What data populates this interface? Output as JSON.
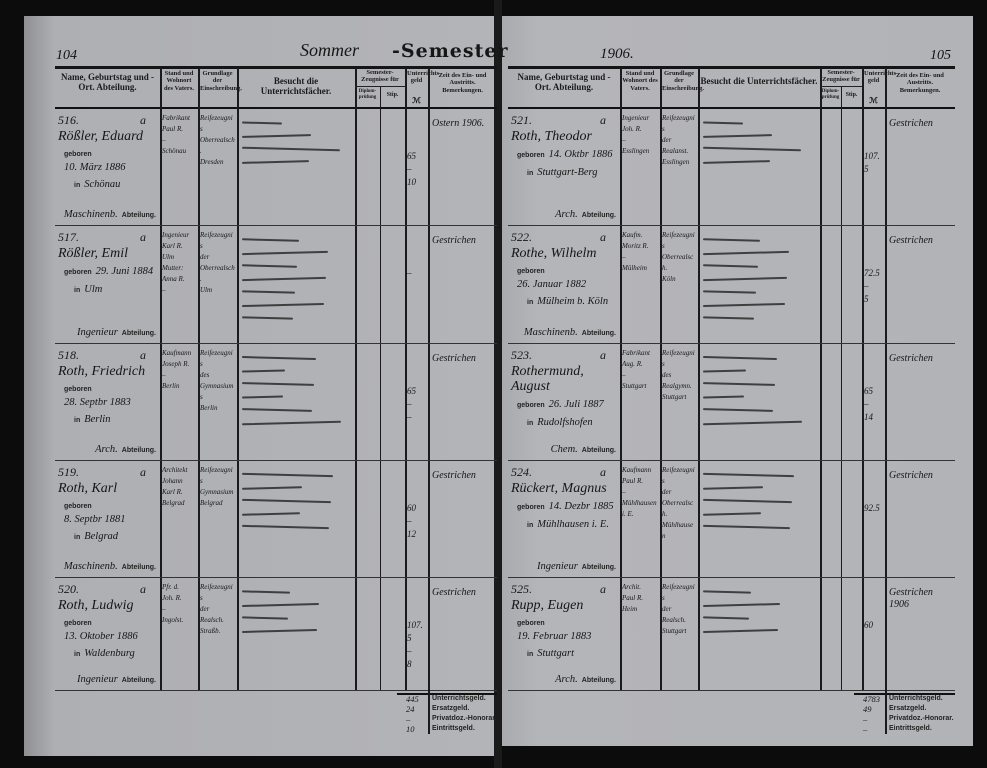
{
  "header": {
    "semester_handwritten": "Sommer",
    "semester_printed": "-Semester",
    "year": "1906.",
    "page_left": "104",
    "page_right": "105"
  },
  "columns": {
    "name": "Name, Geburtstag und -Ort. Abteilung.",
    "stand": "Stand und Wohnort des Vaters.",
    "grundlage": "Grundlage der Einschreibung.",
    "besucht": "Besucht die Unterrichtsfächer.",
    "semester": "Semester-Zeugnisse für",
    "semester_sub1": "Diplom-prüfung",
    "semester_sub2": "Stip.",
    "geld": "Unterrichts-geld",
    "geld_unit": "ℳ",
    "zeit": "Zeit des Ein- und Austritts. Bemerkungen."
  },
  "labels": {
    "geboren": "geboren",
    "in": "in",
    "abteilung": "Abteilung.",
    "a": "a"
  },
  "left_entries": [
    {
      "number": "516.",
      "name": "Rößler, Eduard",
      "born": "10. März 1886",
      "place": "Schönau",
      "abteilung": "Maschinenb.",
      "stand": [
        "Fabrikant",
        "Paul R.",
        "–",
        "Schönau"
      ],
      "grundlage": [
        "Reifezeugnis",
        "Oberrealsch.",
        "Dresden"
      ],
      "geld": [
        "65",
        "–",
        "10"
      ],
      "remark": "Ostern 1906."
    },
    {
      "number": "517.",
      "name": "Rößler, Emil",
      "born": "29. Juni 1884",
      "place": "Ulm",
      "abteilung": "Ingenieur",
      "stand": [
        "Ingenieur",
        "Karl R.",
        "Ulm",
        "Mutter:",
        "Anna R.",
        "–"
      ],
      "grundlage": [
        "Reifezeugnis",
        "der",
        "Oberrealsch.",
        "Ulm"
      ],
      "geld": [
        "–"
      ],
      "remark": "Gestrichen"
    },
    {
      "number": "518.",
      "name": "Roth, Friedrich",
      "born": "28. Septbr 1883",
      "place": "Berlin",
      "abteilung": "Arch.",
      "stand": [
        "Kaufmann",
        "Joseph R.",
        "–",
        "Berlin"
      ],
      "grundlage": [
        "Reifezeugnis",
        "des",
        "Gymnasiums",
        "Berlin"
      ],
      "geld": [
        "65",
        "–",
        "–"
      ],
      "remark": "Gestrichen"
    },
    {
      "number": "519.",
      "name": "Roth, Karl",
      "born": "8. Septbr 1881",
      "place": "Belgrad",
      "abteilung": "Maschinenb.",
      "stand": [
        "Architekt",
        "Johann",
        "Karl R.",
        "Belgrad"
      ],
      "grundlage": [
        "Reifezeugnis",
        "Gymnasium",
        "Belgrad"
      ],
      "geld": [
        "60",
        "–",
        "12"
      ],
      "remark": "Gestrichen"
    },
    {
      "number": "520.",
      "name": "Roth, Ludwig",
      "born": "13. Oktober 1886",
      "place": "Waldenburg",
      "abteilung": "Ingenieur",
      "stand": [
        "Pfr. d.",
        "Joh. R.",
        "–",
        "Ingolst."
      ],
      "grundlage": [
        "Reifezeugnis",
        "der",
        "Realsch.",
        "Straßb."
      ],
      "geld": [
        "107.5",
        "–",
        "8"
      ],
      "remark": "Gestrichen"
    }
  ],
  "right_entries": [
    {
      "number": "521.",
      "name": "Roth, Theodor",
      "born": "14. Oktbr 1886",
      "place": "Stuttgart-Berg",
      "abteilung": "Arch.",
      "stand": [
        "Ingenieur",
        "Joh. R.",
        "–",
        "Esslingen"
      ],
      "grundlage": [
        "Reifezeugnis",
        "der",
        "Realanst.",
        "Esslingen"
      ],
      "geld": [
        "107.5"
      ],
      "remark": "Gestrichen"
    },
    {
      "number": "522.",
      "name": "Rothe, Wilhelm",
      "born": "26. Januar 1882",
      "place": "Mülheim b. Köln",
      "abteilung": "Maschinenb.",
      "stand": [
        "Kaufm.",
        "Moritz R.",
        "–",
        "Mülheim"
      ],
      "grundlage": [
        "Reifezeugnis",
        "Oberrealsch.",
        "Köln"
      ],
      "geld": [
        "72.5",
        "–",
        "5"
      ],
      "remark": "Gestrichen"
    },
    {
      "number": "523.",
      "name": "Rothermund, August",
      "born": "26. Juli 1887",
      "place": "Rudolfshofen",
      "abteilung": "Chem.",
      "stand": [
        "Fabrikant",
        "Aug. R.",
        "–",
        "Stuttgart"
      ],
      "grundlage": [
        "Reifezeugnis",
        "des",
        "Realgymn.",
        "Stuttgart"
      ],
      "geld": [
        "65",
        "–",
        "14"
      ],
      "remark": "Gestrichen"
    },
    {
      "number": "524.",
      "name": "Rückert, Magnus",
      "born": "14. Dezbr 1885",
      "place": "Mühlhausen i. E.",
      "abteilung": "Ingenieur",
      "stand": [
        "Kaufmann",
        "Paul R.",
        "–",
        "Mühlhausen",
        "i. E."
      ],
      "grundlage": [
        "Reifezeugnis",
        "der",
        "Oberrealsch.",
        "Mühlhausen"
      ],
      "geld": [
        "92.5"
      ],
      "remark": "Gestrichen"
    },
    {
      "number": "525.",
      "name": "Rupp, Eugen",
      "born": "19. Februar 1883",
      "place": "Stuttgart",
      "abteilung": "Arch.",
      "stand": [
        "Archit.",
        "Paul R.",
        "Heim"
      ],
      "grundlage": [
        "Reifezeugnis",
        "der",
        "Realsch.",
        "Stuttgart"
      ],
      "geld": [
        "60"
      ],
      "remark": "Gestrichen 1906"
    }
  ],
  "totals_labels": [
    "Unterrichtsgeld.",
    "Ersatzgeld.",
    "Privatdoz.-Honorar.",
    "Eintrittsgeld."
  ],
  "left_totals": [
    "445",
    "24",
    "–",
    "10"
  ],
  "right_totals": [
    "4783",
    "49",
    "–",
    "–"
  ]
}
